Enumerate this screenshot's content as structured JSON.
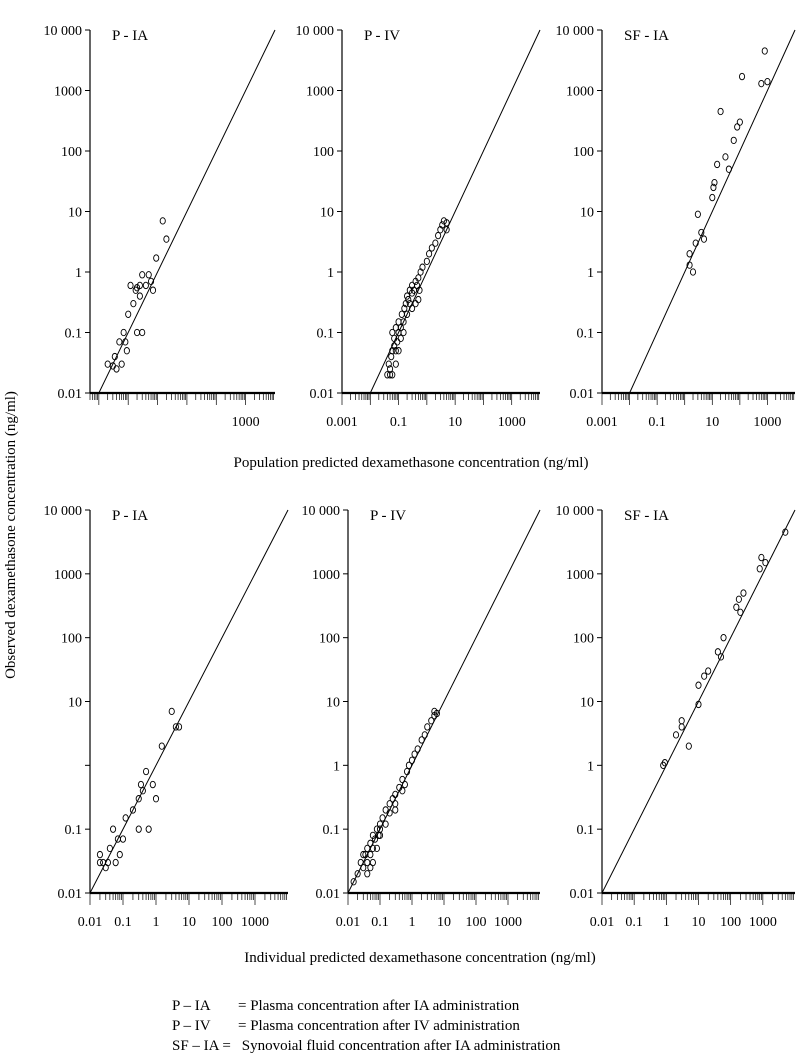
{
  "figure": {
    "y_axis_label": "Observed dexamethasone concentration (ng/ml)",
    "x_axis_label_top": "Population predicted dexamethasone concentration (ng/ml)",
    "x_axis_label_bottom": "Individual predicted dexamethasone concentration (ng/ml)"
  },
  "legend": [
    {
      "key": "P – IA",
      "text": "= Plasma concentration after IA administration"
    },
    {
      "key": "P – IV",
      "text": "= Plasma concentration after IV administration"
    },
    {
      "key": "SF – IA =",
      "text": " Synovoial fluid concentration after IA administration"
    }
  ],
  "chart_data": [
    {
      "type": "scatter",
      "title": "P - IA",
      "x_scale": "log",
      "y_scale": "log",
      "xlim": [
        0.005,
        10000
      ],
      "ylim": [
        0.01,
        10000
      ],
      "x_ticks": [
        1000
      ],
      "x_tick_labels": [
        "1000"
      ],
      "y_ticks": [
        0.01,
        0.1,
        1,
        10,
        100,
        1000,
        10000
      ],
      "y_tick_labels": [
        "0.01",
        "0.1",
        "1",
        "10",
        "100",
        "1000",
        "10 000"
      ],
      "identity_line": true,
      "points": [
        [
          0.02,
          0.03
        ],
        [
          0.03,
          0.028
        ],
        [
          0.035,
          0.04
        ],
        [
          0.04,
          0.025
        ],
        [
          0.05,
          0.07
        ],
        [
          0.06,
          0.03
        ],
        [
          0.07,
          0.1
        ],
        [
          0.08,
          0.07
        ],
        [
          0.09,
          0.05
        ],
        [
          0.1,
          0.2
        ],
        [
          0.12,
          0.6
        ],
        [
          0.15,
          0.3
        ],
        [
          0.18,
          0.5
        ],
        [
          0.2,
          0.55
        ],
        [
          0.25,
          0.4
        ],
        [
          0.3,
          0.9
        ],
        [
          0.4,
          0.6
        ],
        [
          0.5,
          0.9
        ],
        [
          0.6,
          0.7
        ],
        [
          0.7,
          0.5
        ],
        [
          0.9,
          1.7
        ],
        [
          1.5,
          7
        ],
        [
          2,
          3.5
        ],
        [
          0.3,
          0.1
        ],
        [
          0.2,
          0.1
        ],
        [
          0.25,
          0.6
        ]
      ]
    },
    {
      "type": "scatter",
      "title": "P - IV",
      "x_scale": "log",
      "y_scale": "log",
      "xlim": [
        0.001,
        10000
      ],
      "ylim": [
        0.01,
        10000
      ],
      "x_ticks": [
        0.001,
        0.1,
        10,
        1000
      ],
      "x_tick_labels": [
        "0.001",
        "0.1",
        "10",
        "1000"
      ],
      "y_ticks": [
        0.01,
        0.1,
        1,
        10,
        100,
        1000,
        10000
      ],
      "y_tick_labels": [
        "0.01",
        "0.1",
        "1",
        "10",
        "100",
        "1000",
        "10 000"
      ],
      "identity_line": true,
      "points": [
        [
          0.04,
          0.02
        ],
        [
          0.045,
          0.03
        ],
        [
          0.05,
          0.025
        ],
        [
          0.055,
          0.04
        ],
        [
          0.06,
          0.05
        ],
        [
          0.06,
          0.1
        ],
        [
          0.07,
          0.06
        ],
        [
          0.07,
          0.08
        ],
        [
          0.08,
          0.05
        ],
        [
          0.08,
          0.12
        ],
        [
          0.09,
          0.07
        ],
        [
          0.1,
          0.1
        ],
        [
          0.1,
          0.15
        ],
        [
          0.12,
          0.12
        ],
        [
          0.13,
          0.2
        ],
        [
          0.15,
          0.15
        ],
        [
          0.16,
          0.25
        ],
        [
          0.18,
          0.3
        ],
        [
          0.2,
          0.2
        ],
        [
          0.2,
          0.4
        ],
        [
          0.22,
          0.35
        ],
        [
          0.25,
          0.3
        ],
        [
          0.25,
          0.5
        ],
        [
          0.3,
          0.45
        ],
        [
          0.3,
          0.6
        ],
        [
          0.35,
          0.5
        ],
        [
          0.4,
          0.7
        ],
        [
          0.45,
          0.6
        ],
        [
          0.5,
          0.8
        ],
        [
          0.55,
          0.5
        ],
        [
          0.6,
          1
        ],
        [
          0.7,
          1.2
        ],
        [
          1,
          1.5
        ],
        [
          1.2,
          2
        ],
        [
          1.5,
          2.5
        ],
        [
          2,
          3
        ],
        [
          2.5,
          4
        ],
        [
          3,
          5
        ],
        [
          3.5,
          6
        ],
        [
          4,
          7
        ],
        [
          5,
          6.5
        ],
        [
          5,
          5
        ],
        [
          0.05,
          0.02
        ],
        [
          0.06,
          0.02
        ],
        [
          0.08,
          0.03
        ],
        [
          0.1,
          0.05
        ],
        [
          0.12,
          0.08
        ],
        [
          0.15,
          0.1
        ],
        [
          0.3,
          0.25
        ],
        [
          0.4,
          0.3
        ],
        [
          0.5,
          0.35
        ]
      ]
    },
    {
      "type": "scatter",
      "title": "SF - IA",
      "x_scale": "log",
      "y_scale": "log",
      "xlim": [
        0.001,
        10000
      ],
      "ylim": [
        0.01,
        10000
      ],
      "x_ticks": [
        0.001,
        0.1,
        10,
        1000
      ],
      "x_tick_labels": [
        "0.001",
        "0.1",
        "10",
        "1000"
      ],
      "y_ticks": [
        0.01,
        0.1,
        1,
        10,
        100,
        1000,
        10000
      ],
      "y_tick_labels": [
        "0.01",
        "0.1",
        "1",
        "10",
        "100",
        "1000",
        "10 000"
      ],
      "identity_line": true,
      "points": [
        [
          1.5,
          2
        ],
        [
          1.5,
          1.3
        ],
        [
          2,
          1
        ],
        [
          2.5,
          3
        ],
        [
          3,
          9
        ],
        [
          4,
          4.5
        ],
        [
          5,
          3.5
        ],
        [
          10,
          17
        ],
        [
          11,
          25
        ],
        [
          12,
          30
        ],
        [
          15,
          60
        ],
        [
          20,
          450
        ],
        [
          30,
          80
        ],
        [
          40,
          50
        ],
        [
          60,
          150
        ],
        [
          80,
          250
        ],
        [
          100,
          300
        ],
        [
          120,
          1700
        ],
        [
          600,
          1300
        ],
        [
          800,
          4500
        ],
        [
          1000,
          1400
        ]
      ]
    },
    {
      "type": "scatter",
      "title": "P - IA",
      "x_scale": "log",
      "y_scale": "log",
      "xlim": [
        0.01,
        10000
      ],
      "ylim": [
        0.01,
        10000
      ],
      "x_ticks": [
        0.01,
        0.1,
        1,
        10,
        100,
        1000
      ],
      "x_tick_labels": [
        "0.01",
        "0.1",
        "1",
        "10",
        "100",
        "1000"
      ],
      "y_ticks": [
        0.01,
        0.1,
        1,
        10,
        100,
        1000,
        10000
      ],
      "y_tick_labels": [
        "0.01",
        "0.1",
        "",
        "10",
        "100",
        "1000",
        "10 000"
      ],
      "identity_line": true,
      "points": [
        [
          0.02,
          0.04
        ],
        [
          0.02,
          0.03
        ],
        [
          0.025,
          0.03
        ],
        [
          0.03,
          0.025
        ],
        [
          0.035,
          0.03
        ],
        [
          0.04,
          0.05
        ],
        [
          0.05,
          0.1
        ],
        [
          0.06,
          0.03
        ],
        [
          0.07,
          0.07
        ],
        [
          0.08,
          0.04
        ],
        [
          0.1,
          0.07
        ],
        [
          0.12,
          0.15
        ],
        [
          0.2,
          0.2
        ],
        [
          0.3,
          0.3
        ],
        [
          0.35,
          0.5
        ],
        [
          0.4,
          0.4
        ],
        [
          0.5,
          0.8
        ],
        [
          0.6,
          0.1
        ],
        [
          0.3,
          0.1
        ],
        [
          0.8,
          0.5
        ],
        [
          1,
          0.3
        ],
        [
          1.5,
          2
        ],
        [
          3,
          7
        ],
        [
          4,
          4
        ],
        [
          5,
          4
        ]
      ]
    },
    {
      "type": "scatter",
      "title": "P - IV",
      "x_scale": "log",
      "y_scale": "log",
      "xlim": [
        0.01,
        10000
      ],
      "ylim": [
        0.01,
        10000
      ],
      "x_ticks": [
        0.01,
        0.1,
        1,
        10,
        100,
        1000
      ],
      "x_tick_labels": [
        "0.01",
        "0.1",
        "1",
        "10",
        "100",
        "1000"
      ],
      "y_ticks": [
        0.01,
        0.1,
        1,
        10,
        100,
        1000,
        10000
      ],
      "y_tick_labels": [
        "0.01",
        "0.1",
        "1",
        "10",
        "100",
        "1000",
        "10 000"
      ],
      "identity_line": true,
      "points": [
        [
          0.015,
          0.015
        ],
        [
          0.02,
          0.02
        ],
        [
          0.025,
          0.03
        ],
        [
          0.03,
          0.025
        ],
        [
          0.035,
          0.04
        ],
        [
          0.04,
          0.05
        ],
        [
          0.05,
          0.04
        ],
        [
          0.05,
          0.06
        ],
        [
          0.06,
          0.05
        ],
        [
          0.06,
          0.08
        ],
        [
          0.07,
          0.07
        ],
        [
          0.08,
          0.1
        ],
        [
          0.09,
          0.08
        ],
        [
          0.1,
          0.12
        ],
        [
          0.1,
          0.1
        ],
        [
          0.12,
          0.15
        ],
        [
          0.15,
          0.12
        ],
        [
          0.15,
          0.2
        ],
        [
          0.2,
          0.25
        ],
        [
          0.2,
          0.18
        ],
        [
          0.25,
          0.3
        ],
        [
          0.3,
          0.25
        ],
        [
          0.3,
          0.35
        ],
        [
          0.4,
          0.45
        ],
        [
          0.5,
          0.6
        ],
        [
          0.6,
          0.5
        ],
        [
          0.7,
          0.8
        ],
        [
          0.8,
          1
        ],
        [
          1,
          1.2
        ],
        [
          1.2,
          1.5
        ],
        [
          1.5,
          1.8
        ],
        [
          2,
          2.5
        ],
        [
          2.5,
          3
        ],
        [
          3,
          4
        ],
        [
          4,
          5
        ],
        [
          5,
          6
        ],
        [
          5,
          7
        ],
        [
          6,
          6.5
        ],
        [
          0.04,
          0.02
        ],
        [
          0.05,
          0.025
        ],
        [
          0.06,
          0.03
        ],
        [
          0.08,
          0.05
        ],
        [
          0.1,
          0.08
        ],
        [
          0.3,
          0.2
        ],
        [
          0.5,
          0.4
        ],
        [
          0.03,
          0.04
        ],
        [
          0.04,
          0.03
        ]
      ]
    },
    {
      "type": "scatter",
      "title": "SF - IA",
      "x_scale": "log",
      "y_scale": "log",
      "xlim": [
        0.01,
        10000
      ],
      "ylim": [
        0.01,
        10000
      ],
      "x_ticks": [
        0.01,
        0.1,
        1,
        10,
        100,
        1000
      ],
      "x_tick_labels": [
        "0.01",
        "0.1",
        "1",
        "10",
        "100",
        "1000"
      ],
      "y_ticks": [
        0.01,
        0.1,
        1,
        10,
        100,
        1000,
        10000
      ],
      "y_tick_labels": [
        "0.01",
        "0.1",
        "1",
        "10",
        "100",
        "1000",
        "10 000"
      ],
      "identity_line": true,
      "points": [
        [
          0.8,
          1
        ],
        [
          0.9,
          1.1
        ],
        [
          2,
          3
        ],
        [
          3,
          4
        ],
        [
          3,
          5
        ],
        [
          5,
          2
        ],
        [
          10,
          9
        ],
        [
          10,
          18
        ],
        [
          15,
          25
        ],
        [
          20,
          30
        ],
        [
          40,
          60
        ],
        [
          50,
          50
        ],
        [
          60,
          100
        ],
        [
          150,
          300
        ],
        [
          180,
          400
        ],
        [
          200,
          250
        ],
        [
          250,
          500
        ],
        [
          800,
          1200
        ],
        [
          900,
          1800
        ],
        [
          1200,
          1500
        ],
        [
          5000,
          4500
        ]
      ]
    }
  ]
}
